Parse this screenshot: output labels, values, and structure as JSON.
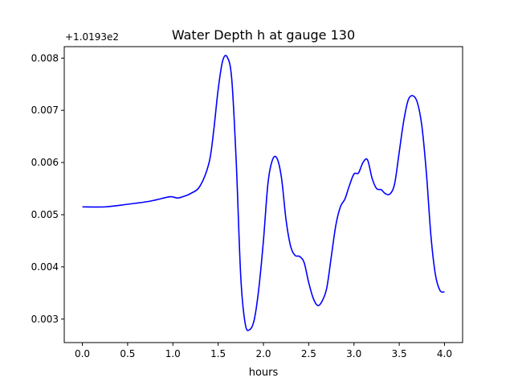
{
  "chart_data": {
    "type": "line",
    "title": "Water Depth h at gauge 130",
    "xlabel": "hours",
    "ylabel": "",
    "offset_label": "+1.0193e2",
    "xlim": [
      -0.2,
      4.2
    ],
    "ylim": [
      0.00255,
      0.00822
    ],
    "xticks": [
      0.0,
      0.5,
      1.0,
      1.5,
      2.0,
      2.5,
      3.0,
      3.5,
      4.0
    ],
    "xtick_labels": [
      "0.0",
      "0.5",
      "1.0",
      "1.5",
      "2.0",
      "2.5",
      "3.0",
      "3.5",
      "4.0"
    ],
    "yticks": [
      0.003,
      0.004,
      0.005,
      0.006,
      0.007,
      0.008
    ],
    "ytick_labels": [
      "0.003",
      "0.004",
      "0.005",
      "0.006",
      "0.007",
      "0.008"
    ],
    "grid": false,
    "series": [
      {
        "color": "#0000ff",
        "x": [
          0.0,
          0.25,
          0.5,
          0.75,
          0.95,
          1.0,
          1.05,
          1.1,
          1.2,
          1.3,
          1.4,
          1.45,
          1.5,
          1.55,
          1.6,
          1.65,
          1.7,
          1.75,
          1.8,
          1.85,
          1.9,
          1.95,
          2.0,
          2.05,
          2.1,
          2.15,
          2.2,
          2.25,
          2.3,
          2.35,
          2.4,
          2.45,
          2.5,
          2.55,
          2.6,
          2.65,
          2.7,
          2.75,
          2.8,
          2.85,
          2.9,
          2.95,
          3.0,
          3.05,
          3.1,
          3.15,
          3.2,
          3.25,
          3.3,
          3.35,
          3.4,
          3.45,
          3.5,
          3.55,
          3.6,
          3.65,
          3.7,
          3.75,
          3.8,
          3.85,
          3.9,
          3.95,
          4.0
        ],
        "y": [
          0.00515,
          0.00515,
          0.0052,
          0.00526,
          0.00534,
          0.00534,
          0.00532,
          0.00534,
          0.00541,
          0.00555,
          0.006,
          0.0066,
          0.0074,
          0.00795,
          0.00802,
          0.0076,
          0.006,
          0.0038,
          0.0029,
          0.0028,
          0.003,
          0.0036,
          0.0045,
          0.0056,
          0.00605,
          0.00608,
          0.0057,
          0.0049,
          0.0044,
          0.00422,
          0.0042,
          0.00408,
          0.0037,
          0.0034,
          0.00326,
          0.00335,
          0.0036,
          0.0042,
          0.0048,
          0.00515,
          0.0053,
          0.00556,
          0.00578,
          0.0058,
          0.006,
          0.00605,
          0.0057,
          0.0055,
          0.00548,
          0.0054,
          0.0054,
          0.0056,
          0.0062,
          0.0068,
          0.0072,
          0.00728,
          0.00715,
          0.0067,
          0.0058,
          0.0046,
          0.00385,
          0.00355,
          0.00352
        ]
      }
    ]
  }
}
